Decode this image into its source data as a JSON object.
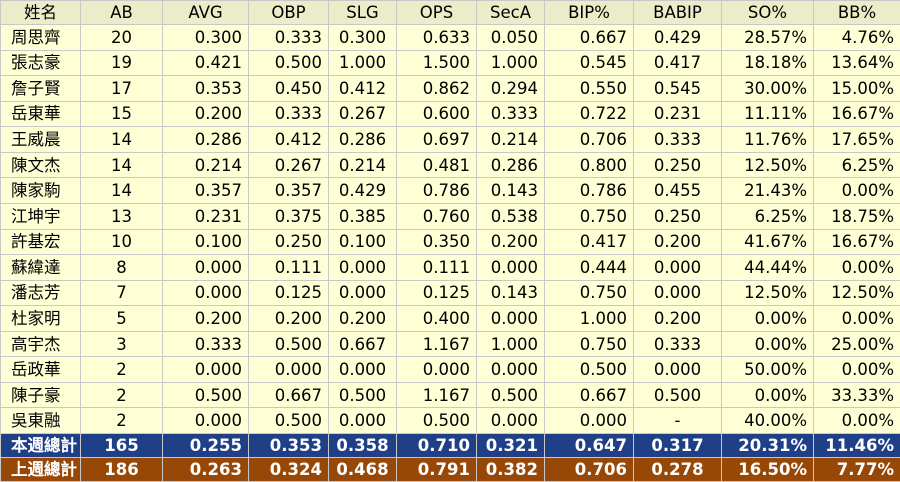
{
  "colors": {
    "header_bg": "#ececc8",
    "row_bg": "#ffffd5",
    "this_week_bg": "#1f3f86",
    "last_week_bg": "#984806"
  },
  "columns": [
    "姓名",
    "AB",
    "AVG",
    "OBP",
    "SLG",
    "OPS",
    "SecA",
    "BIP%",
    "BABIP",
    "SO%",
    "BB%"
  ],
  "rows": [
    [
      "周思齊",
      "20",
      "0.300",
      "0.333",
      "0.300",
      "0.633",
      "0.050",
      "0.667",
      "0.429",
      "28.57%",
      "4.76%"
    ],
    [
      "張志豪",
      "19",
      "0.421",
      "0.500",
      "1.000",
      "1.500",
      "1.000",
      "0.545",
      "0.417",
      "18.18%",
      "13.64%"
    ],
    [
      "詹子賢",
      "17",
      "0.353",
      "0.450",
      "0.412",
      "0.862",
      "0.294",
      "0.550",
      "0.545",
      "30.00%",
      "15.00%"
    ],
    [
      "岳東華",
      "15",
      "0.200",
      "0.333",
      "0.267",
      "0.600",
      "0.333",
      "0.722",
      "0.231",
      "11.11%",
      "16.67%"
    ],
    [
      "王威晨",
      "14",
      "0.286",
      "0.412",
      "0.286",
      "0.697",
      "0.214",
      "0.706",
      "0.333",
      "11.76%",
      "17.65%"
    ],
    [
      "陳文杰",
      "14",
      "0.214",
      "0.267",
      "0.214",
      "0.481",
      "0.286",
      "0.800",
      "0.250",
      "12.50%",
      "6.25%"
    ],
    [
      "陳家駒",
      "14",
      "0.357",
      "0.357",
      "0.429",
      "0.786",
      "0.143",
      "0.786",
      "0.455",
      "21.43%",
      "0.00%"
    ],
    [
      "江坤宇",
      "13",
      "0.231",
      "0.375",
      "0.385",
      "0.760",
      "0.538",
      "0.750",
      "0.250",
      "6.25%",
      "18.75%"
    ],
    [
      "許基宏",
      "10",
      "0.100",
      "0.250",
      "0.100",
      "0.350",
      "0.200",
      "0.417",
      "0.200",
      "41.67%",
      "16.67%"
    ],
    [
      "蘇緯達",
      "8",
      "0.000",
      "0.111",
      "0.000",
      "0.111",
      "0.000",
      "0.444",
      "0.000",
      "44.44%",
      "0.00%"
    ],
    [
      "潘志芳",
      "7",
      "0.000",
      "0.125",
      "0.000",
      "0.125",
      "0.143",
      "0.750",
      "0.000",
      "12.50%",
      "12.50%"
    ],
    [
      "杜家明",
      "5",
      "0.200",
      "0.200",
      "0.200",
      "0.400",
      "0.000",
      "1.000",
      "0.200",
      "0.00%",
      "0.00%"
    ],
    [
      "高宇杰",
      "3",
      "0.333",
      "0.500",
      "0.667",
      "1.167",
      "1.000",
      "0.750",
      "0.333",
      "0.00%",
      "25.00%"
    ],
    [
      "岳政華",
      "2",
      "0.000",
      "0.000",
      "0.000",
      "0.000",
      "0.000",
      "0.500",
      "0.000",
      "50.00%",
      "0.00%"
    ],
    [
      "陳子豪",
      "2",
      "0.500",
      "0.667",
      "0.500",
      "1.167",
      "0.500",
      "0.667",
      "0.500",
      "0.00%",
      "33.33%"
    ],
    [
      "吳東融",
      "2",
      "0.000",
      "0.500",
      "0.000",
      "0.500",
      "0.000",
      "0.000",
      "-",
      "40.00%",
      "0.00%"
    ]
  ],
  "this_week_total": [
    "本週總計",
    "165",
    "0.255",
    "0.353",
    "0.358",
    "0.710",
    "0.321",
    "0.647",
    "0.317",
    "20.31%",
    "11.46%"
  ],
  "last_week_total": [
    "上週總計",
    "186",
    "0.263",
    "0.324",
    "0.468",
    "0.791",
    "0.382",
    "0.706",
    "0.278",
    "16.50%",
    "7.77%"
  ]
}
